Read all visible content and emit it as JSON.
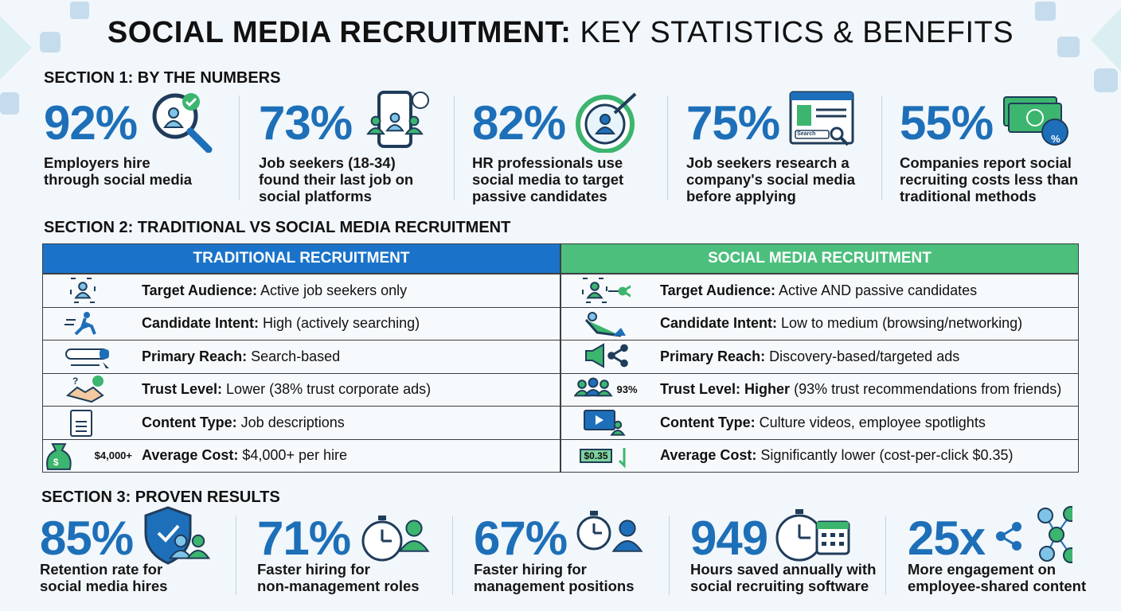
{
  "header": {
    "title_bold": "SOCIAL MEDIA RECRUITMENT:",
    "title_light": "KEY STATISTICS & BENEFITS"
  },
  "section1": {
    "heading": "SECTION 1: BY THE NUMBERS",
    "stats": [
      {
        "value": "92%",
        "label_lines": [
          "Employers hire",
          "through social media"
        ]
      },
      {
        "value": "73%",
        "label_lines": [
          "Job seekers (18-34)",
          "found their last job on",
          "social platforms"
        ]
      },
      {
        "value": "82%",
        "label_lines": [
          "HR professionals use",
          "social media to target",
          "passive candidates"
        ]
      },
      {
        "value": "75%",
        "label_lines": [
          "Job seekers research a",
          "company's social media",
          "before applying"
        ],
        "icon_label": "Search"
      },
      {
        "value": "55%",
        "label_lines": [
          "Companies report social",
          "recruiting costs less than",
          "traditional methods"
        ],
        "icon_label": "%"
      }
    ]
  },
  "section2": {
    "heading": "SECTION 2: TRADITIONAL VS SOCIAL MEDIA RECRUITMENT",
    "columns": [
      "TRADITIONAL RECRUITMENT",
      "SOCIAL MEDIA RECRUITMENT"
    ],
    "rows": [
      {
        "traditional": {
          "term": "Target Audience:",
          "text": "Active job seekers only"
        },
        "social": {
          "term": "Target Audience:",
          "text": "Active AND passive candidates"
        }
      },
      {
        "traditional": {
          "term": "Candidate Intent:",
          "text": "High (actively searching)"
        },
        "social": {
          "term": "Candidate Intent:",
          "text": "Low to medium (browsing/networking)"
        }
      },
      {
        "traditional": {
          "term": "Primary Reach:",
          "text": "Search-based"
        },
        "social": {
          "term": "Primary Reach:",
          "text": "Discovery-based/targeted ads"
        }
      },
      {
        "traditional": {
          "term": "Trust Level:",
          "text": "Lower (38% trust corporate ads)"
        },
        "social": {
          "term": "Trust Level:",
          "emphasis": "Higher",
          "text": "(93% trust recommendations from friends)",
          "icon_label": "93%"
        }
      },
      {
        "traditional": {
          "term": "Content Type:",
          "text": "Job descriptions"
        },
        "social": {
          "term": "Content Type:",
          "text": "Culture videos, employee spotlights"
        }
      },
      {
        "traditional": {
          "term": "Average Cost:",
          "text": "$4,000+ per hire",
          "icon_label": "$4,000+"
        },
        "social": {
          "term": "Average Cost:",
          "text": "Significantly lower (cost-per-click $0.35)",
          "icon_label": "$0.35"
        }
      }
    ]
  },
  "section3": {
    "heading": "SECTION 3: PROVEN RESULTS",
    "stats": [
      {
        "value": "85%",
        "label_lines": [
          "Retention rate for",
          "social media hires"
        ]
      },
      {
        "value": "71%",
        "label_lines": [
          "Faster hiring for",
          "non-management roles"
        ]
      },
      {
        "value": "67%",
        "label_lines": [
          "Faster hiring for",
          "management positions"
        ]
      },
      {
        "value": "949",
        "label_lines": [
          "Hours saved annually with",
          "social recruiting software"
        ]
      },
      {
        "value": "25x",
        "label_lines": [
          "More engagement on",
          "employee-shared content"
        ]
      }
    ]
  }
}
